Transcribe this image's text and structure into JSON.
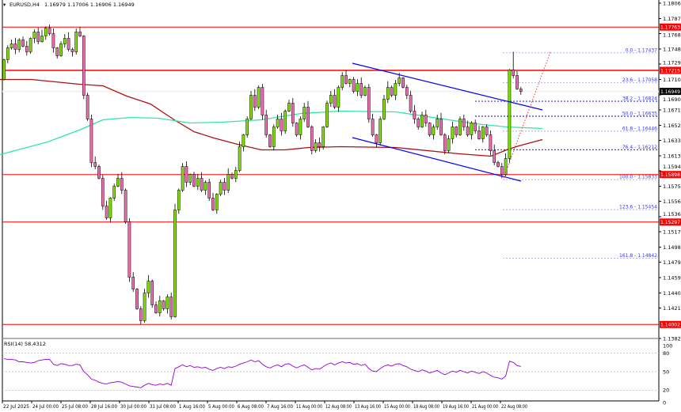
{
  "header": {
    "symbol": "EURUSD,H4",
    "ohlc_text": "1.16979 1.17006 1.16906 1.16949"
  },
  "colors": {
    "bull": "#7fe000",
    "bear": "#f06cb0",
    "sr_line": "#ff0000",
    "channel": "#0000ff",
    "fib": "#3333ff",
    "ma_slow": "#b01010",
    "ma_fast": "#30e8a0",
    "rsi": "#9400d3"
  },
  "chart_data": {
    "type": "candlestick",
    "symbol": "EURUSD",
    "timeframe": "H4",
    "ylim": [
      1.13825,
      1.18065
    ],
    "price_ticks": [
      "1.18065",
      "1.17870",
      "1.17680",
      "1.17485",
      "1.17295",
      "1.17100",
      "1.16905",
      "1.16715",
      "1.16520",
      "1.16330",
      "1.16135",
      "1.15945",
      "1.15750",
      "1.15560",
      "1.15365",
      "1.15175",
      "1.14980",
      "1.14790",
      "1.14595",
      "1.14400",
      "1.14210",
      "1.13825"
    ],
    "time_ticks": [
      "22 Jul 2025",
      "24 Jul 00:00",
      "25 Jul 08:00",
      "28 Jul 16:00",
      "30 Jul 00:00",
      "31 Jul 08:00",
      "1 Aug 16:00",
      "5 Aug 00:00",
      "6 Aug 08:00",
      "7 Aug 16:00",
      "11 Aug 00:00",
      "12 Aug 08:00",
      "13 Aug 16:00",
      "15 Aug 00:00",
      "18 Aug 08:00",
      "19 Aug 16:00",
      "21 Aug 00:00",
      "22 Aug 08:00"
    ],
    "current_price": "1.16949",
    "closes": [
      1.1735,
      1.175,
      1.1755,
      1.1748,
      1.176,
      1.1752,
      1.1745,
      1.1762,
      1.177,
      1.1758,
      1.1765,
      1.1775,
      1.1768,
      1.175,
      1.174,
      1.1755,
      1.1762,
      1.1748,
      1.1745,
      1.177,
      1.1765,
      1.169,
      1.166,
      1.1605,
      1.16,
      1.1585,
      1.155,
      1.1535,
      1.156,
      1.1575,
      1.1585,
      1.157,
      1.153,
      1.146,
      1.1445,
      1.142,
      1.1405,
      1.144,
      1.1455,
      1.1425,
      1.1415,
      1.143,
      1.142,
      1.1435,
      1.141,
      1.1545,
      1.157,
      1.16,
      1.158,
      1.159,
      1.1575,
      1.1585,
      1.157,
      1.158,
      1.156,
      1.1545,
      1.1565,
      1.158,
      1.157,
      1.159,
      1.1585,
      1.1595,
      1.1625,
      1.164,
      1.166,
      1.169,
      1.1675,
      1.17,
      1.1665,
      1.164,
      1.1625,
      1.165,
      1.166,
      1.1645,
      1.167,
      1.168,
      1.1655,
      1.164,
      1.166,
      1.1675,
      1.165,
      1.162,
      1.163,
      1.1625,
      1.165,
      1.168,
      1.169,
      1.1675,
      1.17,
      1.1715,
      1.1705,
      1.171,
      1.1695,
      1.1705,
      1.169,
      1.17,
      1.166,
      1.164,
      1.163,
      1.166,
      1.1685,
      1.17,
      1.169,
      1.1705,
      1.1712,
      1.17,
      1.169,
      1.167,
      1.166,
      1.165,
      1.1665,
      1.1655,
      1.164,
      1.165,
      1.166,
      1.164,
      1.162,
      1.1635,
      1.165,
      1.164,
      1.166,
      1.165,
      1.164,
      1.1655,
      1.1645,
      1.1635,
      1.165,
      1.164,
      1.162,
      1.1605,
      1.16,
      1.159,
      1.161,
      1.1722,
      1.1715,
      1.1698,
      1.16949
    ],
    "last_candle": {
      "open": 1.16979,
      "high": 1.17006,
      "low": 1.16906,
      "close": 1.16949
    },
    "ma_slow": [
      [
        0,
        1.171
      ],
      [
        40,
        1.171
      ],
      [
        100,
        1.1704
      ],
      [
        130,
        1.1702
      ],
      [
        160,
        1.1689
      ],
      [
        190,
        1.1679
      ],
      [
        220,
        1.1659
      ],
      [
        245,
        1.1644
      ],
      [
        270,
        1.1636
      ],
      [
        300,
        1.1628
      ],
      [
        330,
        1.1621
      ],
      [
        360,
        1.1621
      ],
      [
        390,
        1.1624
      ],
      [
        430,
        1.1625
      ],
      [
        500,
        1.1624
      ],
      [
        580,
        1.1616
      ],
      [
        620,
        1.1613
      ],
      [
        640,
        1.1621
      ],
      [
        655,
        1.1626
      ],
      [
        685,
        1.1634
      ]
    ],
    "ma_fast": [
      [
        0,
        1.1615
      ],
      [
        60,
        1.1631
      ],
      [
        100,
        1.1646
      ],
      [
        130,
        1.1659
      ],
      [
        165,
        1.1662
      ],
      [
        200,
        1.1661
      ],
      [
        240,
        1.1655
      ],
      [
        280,
        1.1656
      ],
      [
        330,
        1.1659
      ],
      [
        380,
        1.1667
      ],
      [
        430,
        1.167
      ],
      [
        500,
        1.1669
      ],
      [
        600,
        1.1654
      ],
      [
        640,
        1.165
      ],
      [
        685,
        1.1648
      ]
    ],
    "horizontal_levels": [
      {
        "price": 1.17763,
        "label": "1.17763"
      },
      {
        "price": 1.17215,
        "label": "1.17215"
      },
      {
        "price": 1.15898,
        "label": "1.15898"
      },
      {
        "price": 1.15297,
        "label": "1.15297"
      },
      {
        "price": 1.14002,
        "label": "1.14002"
      }
    ],
    "fibonacci": [
      {
        "level": "0.0",
        "price": 1.17437,
        "label": "0.0 - 1.17437"
      },
      {
        "level": "23.6",
        "price": 1.17058,
        "label": "23.6 - 1.17058"
      },
      {
        "level": "38.2",
        "price": 1.16824,
        "label": "38.2 - 1.16824"
      },
      {
        "level": "50.0",
        "price": 1.16635,
        "label": "50.0 - 1.16635"
      },
      {
        "level": "61.8",
        "price": 1.16446,
        "label": "61.8 - 1.16446"
      },
      {
        "level": "76.4",
        "price": 1.16212,
        "label": "76.4 - 1.16212"
      },
      {
        "level": "100.0",
        "price": 1.15833,
        "label": "100.0 - 1.15833"
      },
      {
        "level": "123.6",
        "price": 1.15454,
        "label": "123.6 - 1.15454"
      },
      {
        "level": "161.8",
        "price": 1.14842,
        "label": "161.8 - 1.14842"
      }
    ],
    "rsi": {
      "label": "RSI(14) 58.4312",
      "ylim": [
        0,
        100
      ],
      "ticks": [
        "100",
        "80",
        "50",
        "20",
        "0"
      ],
      "levels": [
        80,
        50,
        20
      ],
      "values": [
        71,
        70,
        70,
        69,
        66,
        66,
        65,
        64,
        65,
        68,
        69,
        70,
        70,
        62,
        60,
        63,
        62,
        60,
        60,
        62,
        61,
        50,
        45,
        38,
        36,
        33,
        31,
        30,
        32,
        33,
        34,
        33,
        30,
        27,
        26,
        25,
        24,
        28,
        31,
        29,
        28,
        30,
        29,
        31,
        28,
        55,
        58,
        61,
        58,
        60,
        57,
        58,
        56,
        57,
        54,
        52,
        55,
        57,
        55,
        58,
        57,
        59,
        62,
        64,
        66,
        69,
        66,
        68,
        62,
        58,
        56,
        59,
        61,
        58,
        62,
        63,
        59,
        56,
        59,
        61,
        57,
        53,
        55,
        54,
        58,
        62,
        64,
        61,
        64,
        66,
        64,
        65,
        62,
        63,
        60,
        62,
        55,
        51,
        50,
        55,
        59,
        61,
        59,
        62,
        63,
        60,
        58,
        54,
        52,
        50,
        53,
        51,
        48,
        50,
        52,
        48,
        45,
        48,
        51,
        49,
        52,
        50,
        48,
        51,
        49,
        47,
        50,
        48,
        44,
        41,
        40,
        38,
        43,
        67,
        65,
        60,
        58.43
      ]
    }
  }
}
